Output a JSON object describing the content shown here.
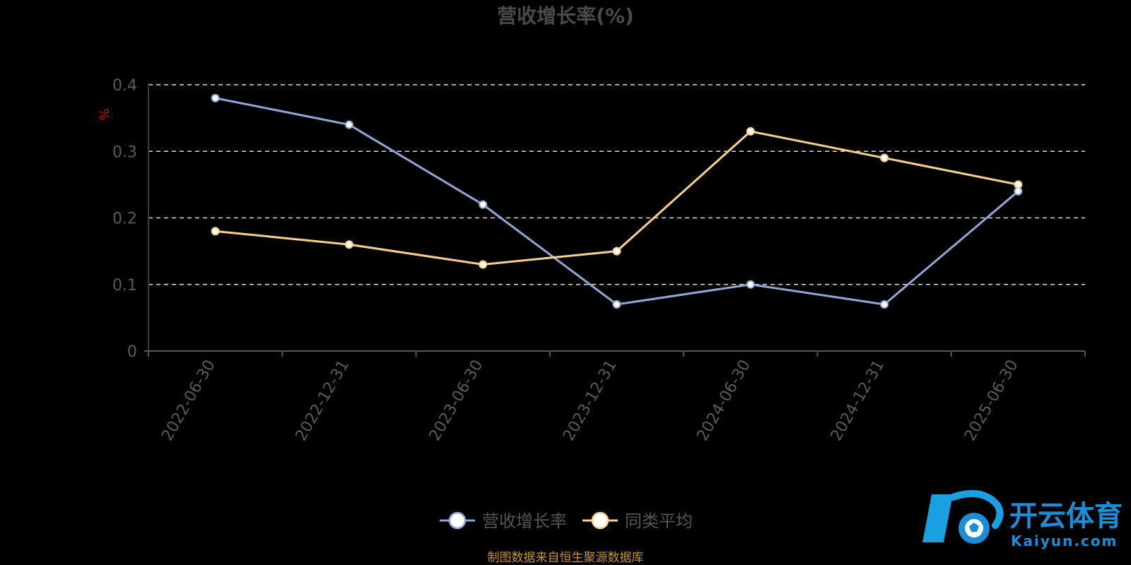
{
  "chart_data": {
    "type": "line",
    "title": "营收增长率(%)",
    "ylabel": "%",
    "categories": [
      "2022-06-30",
      "2022-12-31",
      "2023-06-30",
      "2023-12-31",
      "2024-06-30",
      "2024-12-31",
      "2025-06-30"
    ],
    "yticks": [
      "0",
      "0.1",
      "0.2",
      "0.3",
      "0.4"
    ],
    "ylim": [
      0,
      0.4
    ],
    "grid": true,
    "legend_position": "bottom-center",
    "series": [
      {
        "name": "营收增长率",
        "color": "#8fa7d6",
        "values": [
          0.38,
          0.34,
          0.22,
          0.07,
          0.1,
          0.07,
          0.24
        ]
      },
      {
        "name": "同类平均",
        "color": "#f7d08a",
        "values": [
          0.18,
          0.16,
          0.13,
          0.15,
          0.33,
          0.29,
          0.25
        ]
      }
    ]
  },
  "source_text": "制图数据来自恒生聚源数据库",
  "logo": {
    "cn": "开云体育",
    "en": "Kaiyun.com"
  }
}
